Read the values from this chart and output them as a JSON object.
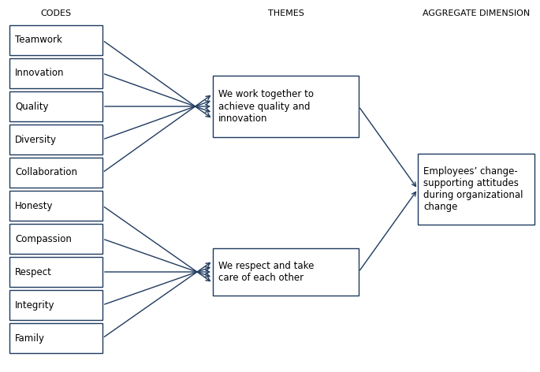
{
  "codes": [
    "Teamwork",
    "Innovation",
    "Quality",
    "Diversity",
    "Collaboration",
    "Honesty",
    "Compassion",
    "Respect",
    "Integrity",
    "Family"
  ],
  "theme1_indices": [
    0,
    1,
    2,
    3,
    4
  ],
  "theme2_indices": [
    5,
    6,
    7,
    8,
    9
  ],
  "theme1_text": "We work together to\nachieve quality and\ninnovation",
  "theme2_text": "We respect and take\ncare of each other",
  "aggregate_text": "Employees’ change-\nsupporting attitudes\nduring organizational\nchange",
  "col_header_codes": "CODES",
  "col_header_themes": "THEMES",
  "col_header_aggregate": "AGGREGATE DIMENSION",
  "box_edge_color": "#1e3a5f",
  "arrow_color": "#1e3a5f",
  "bg_color": "#ffffff",
  "text_color": "#000000",
  "header_color": "#000000",
  "font_size_label": 8.5,
  "font_size_header": 8,
  "font_size_box": 8.5
}
